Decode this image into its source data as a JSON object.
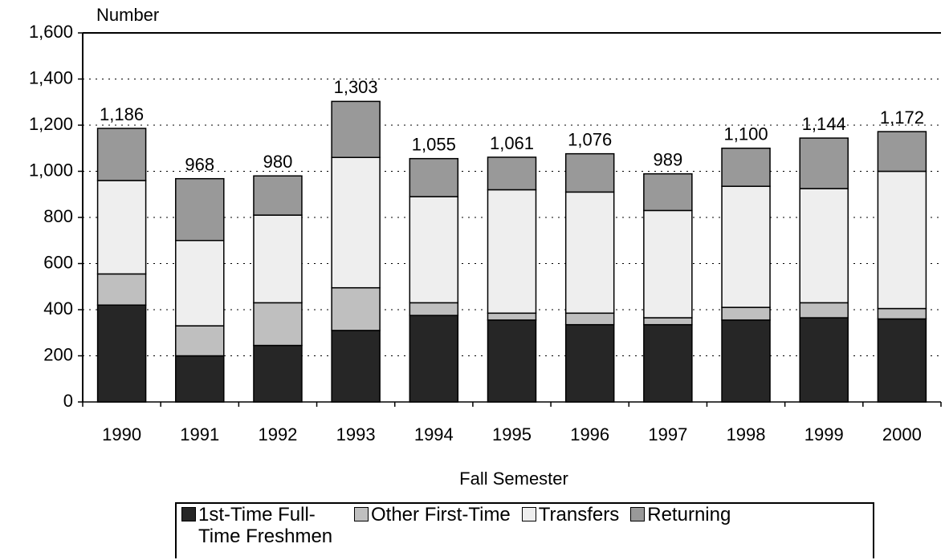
{
  "chart_data": {
    "type": "stacked-bar",
    "y_label": "Number",
    "x_label": "Fall Semester",
    "categories": [
      "1990",
      "1991",
      "1992",
      "1993",
      "1994",
      "1995",
      "1996",
      "1997",
      "1998",
      "1999",
      "2000"
    ],
    "series": [
      {
        "name": "1st-Time Full-Time Freshmen",
        "color": "#262626",
        "values": [
          420,
          200,
          245,
          310,
          375,
          355,
          335,
          335,
          355,
          365,
          360
        ]
      },
      {
        "name": "Other First-Time",
        "color": "#bfbfbf",
        "values": [
          135,
          130,
          185,
          185,
          55,
          30,
          50,
          30,
          55,
          65,
          45
        ]
      },
      {
        "name": "Transfers",
        "color": "#eeeeee",
        "values": [
          405,
          370,
          380,
          565,
          460,
          535,
          525,
          465,
          525,
          495,
          595
        ]
      },
      {
        "name": "Returning",
        "color": "#999999",
        "values": [
          226,
          268,
          170,
          243,
          165,
          141,
          166,
          159,
          165,
          219,
          172
        ]
      }
    ],
    "totals": [
      1186,
      968,
      980,
      1303,
      1055,
      1061,
      1076,
      989,
      1100,
      1144,
      1172
    ],
    "total_labels": [
      "1,186",
      "968",
      "980",
      "1,303",
      "1,055",
      "1,061",
      "1,076",
      "989",
      "1,100",
      "1,144",
      "1,172"
    ],
    "ylim": [
      0,
      1600
    ],
    "yticks": [
      0,
      200,
      400,
      600,
      800,
      {
        "value": 1000,
        "label": "1,000"
      },
      {
        "value": 1200,
        "label": "1,200"
      },
      {
        "value": 1400,
        "label": "1,400"
      },
      {
        "value": 1600,
        "label": "1,600"
      }
    ],
    "grid": true,
    "legend": "bottom"
  }
}
